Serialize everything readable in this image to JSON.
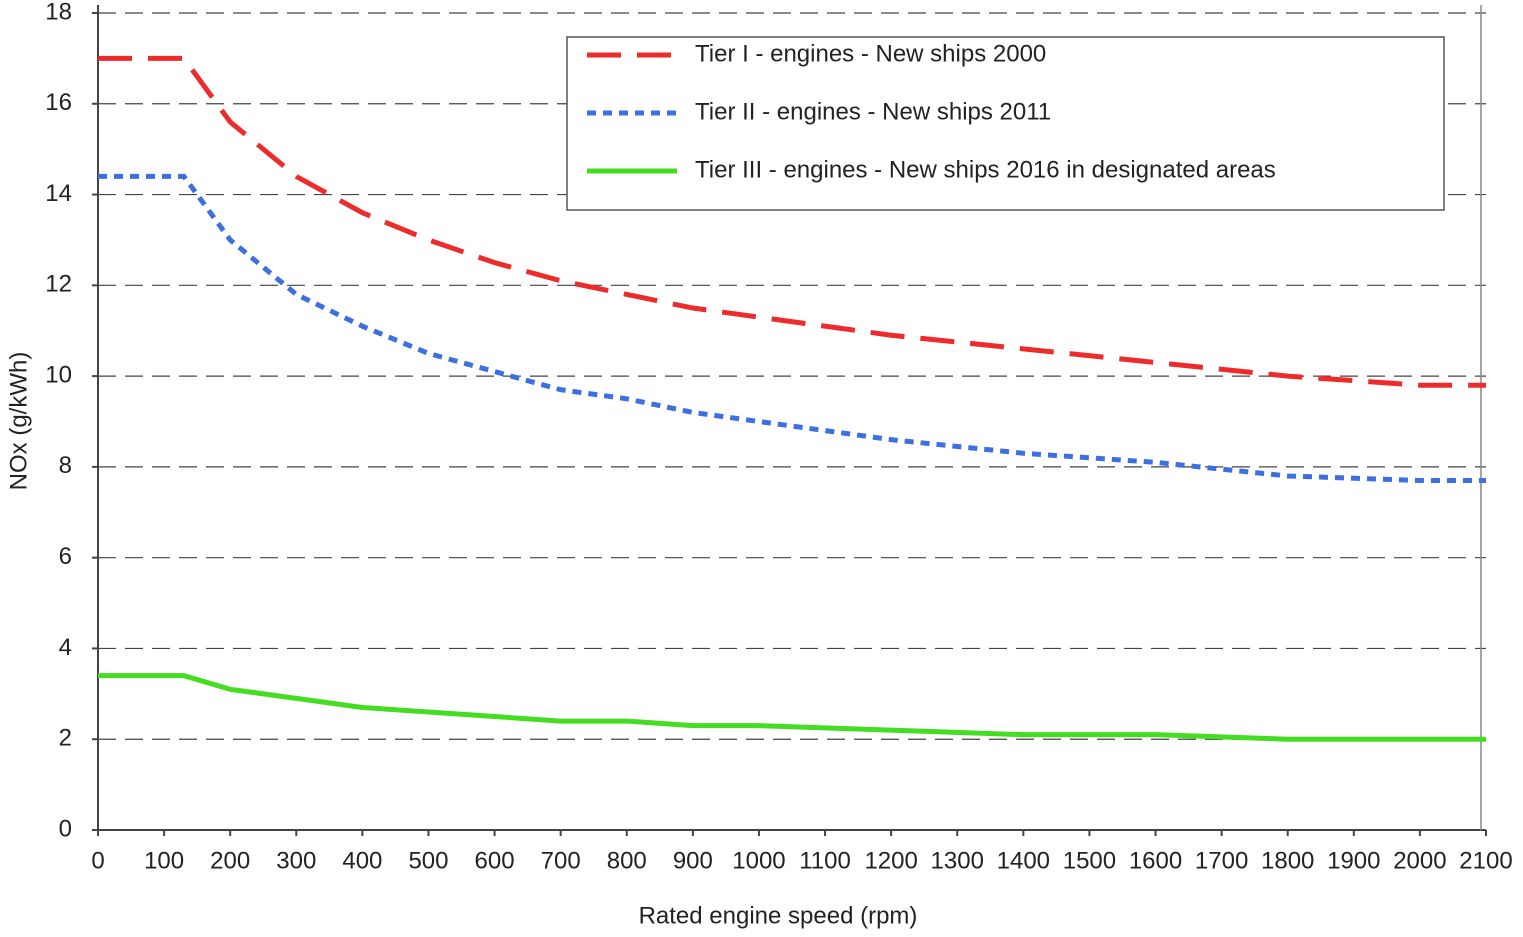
{
  "chart_data": {
    "type": "line",
    "xlabel": "Rated engine speed (rpm)",
    "ylabel": "NOx (g/kWh)",
    "x": [
      0,
      130,
      200,
      300,
      400,
      500,
      600,
      700,
      800,
      900,
      1000,
      1200,
      1400,
      1600,
      1800,
      2000,
      2100
    ],
    "series": [
      {
        "name": "Tier I - engines - New ships 2000",
        "color": "#ee2b2b",
        "dash": "dashed",
        "values": [
          17.0,
          17.0,
          15.6,
          14.4,
          13.6,
          13.0,
          12.5,
          12.1,
          11.8,
          11.5,
          11.3,
          10.9,
          10.6,
          10.3,
          10.0,
          9.8,
          9.8
        ]
      },
      {
        "name": "Tier II - engines - New ships 2011",
        "color": "#3d6fe0",
        "dash": "dotted",
        "values": [
          14.4,
          14.4,
          13.0,
          11.8,
          11.1,
          10.5,
          10.1,
          9.7,
          9.5,
          9.2,
          9.0,
          8.6,
          8.3,
          8.1,
          7.8,
          7.7,
          7.7
        ]
      },
      {
        "name": "Tier III - engines - New ships 2016 in designated areas",
        "color": "#44dd22",
        "dash": "solid",
        "values": [
          3.4,
          3.4,
          3.1,
          2.9,
          2.7,
          2.6,
          2.5,
          2.4,
          2.4,
          2.3,
          2.3,
          2.2,
          2.1,
          2.1,
          2.0,
          2.0,
          2.0
        ]
      }
    ],
    "xlim": [
      0,
      2100
    ],
    "xticks": [
      0,
      100,
      200,
      300,
      400,
      500,
      600,
      700,
      800,
      900,
      1000,
      1100,
      1200,
      1300,
      1400,
      1500,
      1600,
      1700,
      1800,
      1900,
      2000,
      2100
    ],
    "ylim": [
      0,
      18
    ],
    "yticks": [
      0,
      2,
      4,
      6,
      8,
      10,
      12,
      14,
      16,
      18
    ],
    "grid": true,
    "legend": "upper-right"
  }
}
